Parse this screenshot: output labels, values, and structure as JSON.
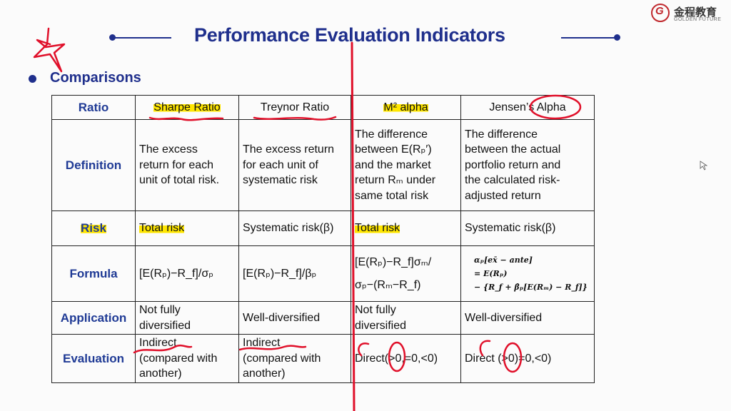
{
  "header": {
    "title": "Performance Evaluation Indicators",
    "logo_cn": "金程教育",
    "logo_en": "GOLDEN FUTURE",
    "logo_letter": "G"
  },
  "section": {
    "label": "Comparisons"
  },
  "table": {
    "corner": "Ratio",
    "columns": [
      "Sharpe Ratio",
      "Treynor Ratio",
      "M² alpha",
      "Jensen’s Alpha"
    ],
    "rows": [
      {
        "label": "Definition",
        "cells": [
          [
            "The excess",
            "return for each",
            "unit of total risk."
          ],
          [
            "The excess return",
            "for each unit of",
            "systematic risk"
          ],
          [
            "The difference",
            "between E(Rₚ′)",
            "and the market",
            "return Rₘ under",
            "same total risk"
          ],
          [
            "The difference",
            "between the actual",
            "portfolio return and",
            "the calculated risk-",
            "adjusted return"
          ]
        ]
      },
      {
        "label": "Risk",
        "cells": [
          [
            "Total risk"
          ],
          [
            "Systematic risk(β)"
          ],
          [
            "Total risk"
          ],
          [
            "Systematic risk(β)"
          ]
        ]
      },
      {
        "label": "Formula",
        "cells": [
          [
            "[E(Rₚ)−R_f]/σₚ"
          ],
          [
            "[E(Rₚ)−R_f]/βₚ"
          ],
          [
            "[E(Rₚ)−R_f]σₘ/",
            "σₚ−(Rₘ−R_f)"
          ],
          [
            "αₚ[ex̄ − ante]",
            "= E(Rₚ)",
            "− {R_f + β̂ₚ[E(Rₘ) − R_f]}"
          ]
        ]
      },
      {
        "label": "Application",
        "cells": [
          [
            "Not fully",
            "diversified"
          ],
          [
            "Well-diversified"
          ],
          [
            "Not fully",
            "diversified"
          ],
          [
            "Well-diversified"
          ]
        ]
      },
      {
        "label": "Evaluation",
        "cells": [
          [
            "Indirect",
            "(compared with",
            "another)"
          ],
          [
            "Indirect",
            "(compared with",
            "another)"
          ],
          [
            "Direct(>0,=0,<0)"
          ],
          [
            "Direct (>0)=0,<0)"
          ]
        ]
      }
    ]
  },
  "colors": {
    "accent": "#1f2f8c",
    "highlight": "#ffe600",
    "ink": "#e0102a"
  }
}
